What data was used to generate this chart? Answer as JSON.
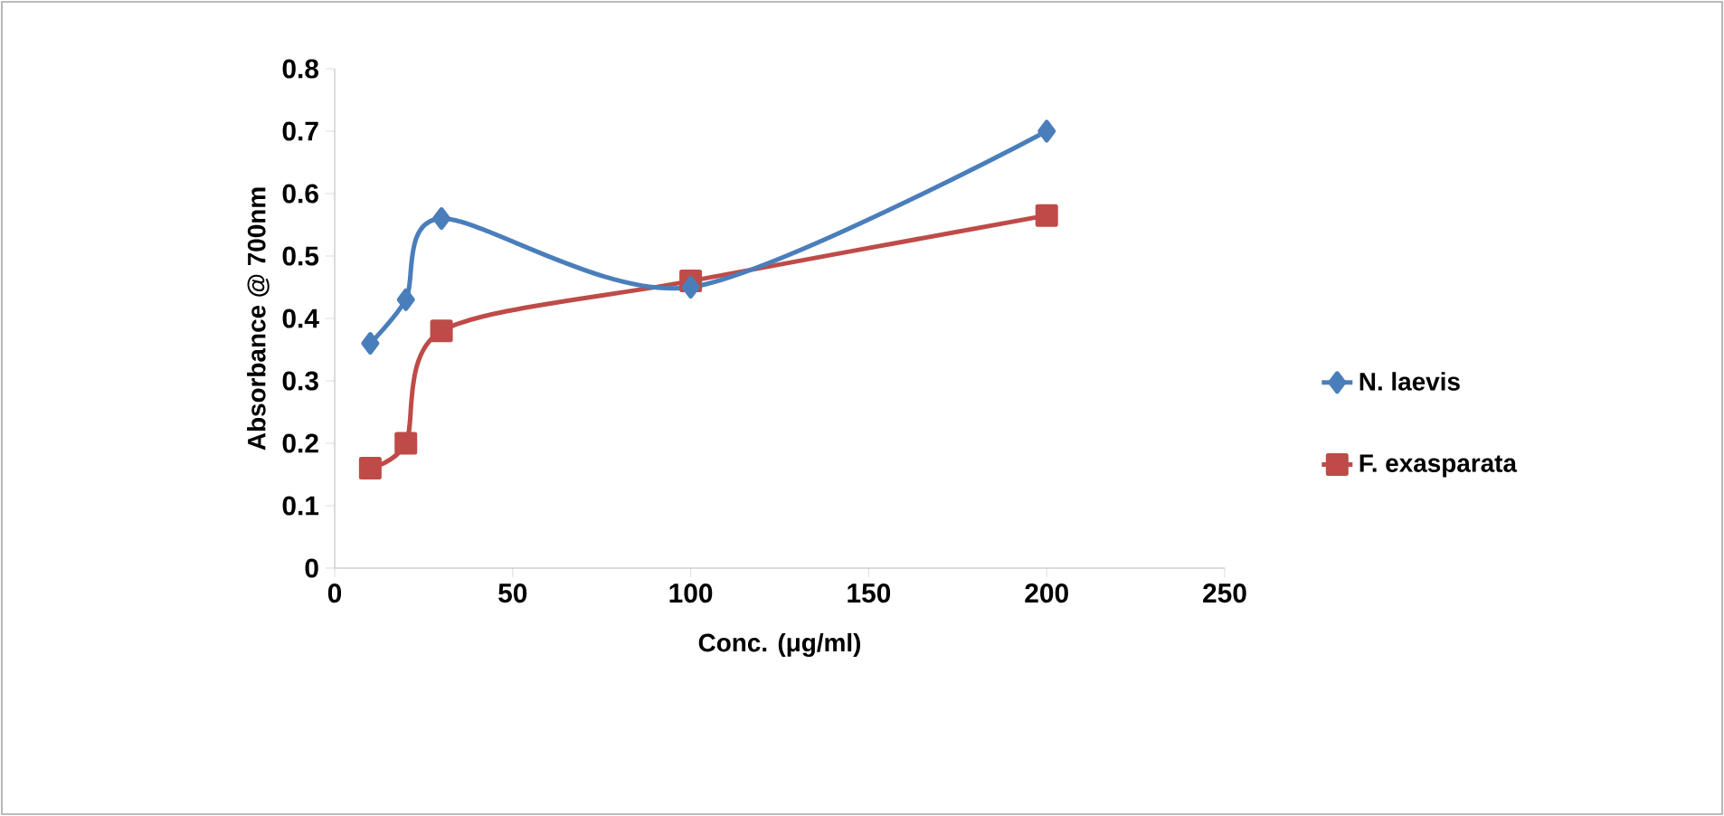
{
  "chart_data": {
    "type": "line",
    "xlabel": "Conc. (μg/ml)",
    "ylabel": "Absorbance @ 700nm",
    "xlim": [
      0,
      250
    ],
    "xticks": [
      0,
      50,
      100,
      150,
      200,
      250
    ],
    "ylim": [
      0,
      0.8
    ],
    "yticks": [
      0,
      0.1,
      0.2,
      0.3,
      0.4,
      0.5,
      0.6,
      0.7,
      0.8
    ],
    "legend": "right",
    "grid": false,
    "series": [
      {
        "name": "N. laevis",
        "color": "#4a7ebb",
        "marker": "diamond",
        "x": [
          10,
          20,
          30,
          100,
          200
        ],
        "values": [
          0.36,
          0.43,
          0.56,
          0.45,
          0.7
        ]
      },
      {
        "name": "F. exasparata",
        "color": "#be4b48",
        "marker": "square",
        "x": [
          10,
          20,
          30,
          100,
          200
        ],
        "values": [
          0.16,
          0.2,
          0.38,
          0.46,
          0.565
        ]
      }
    ]
  }
}
